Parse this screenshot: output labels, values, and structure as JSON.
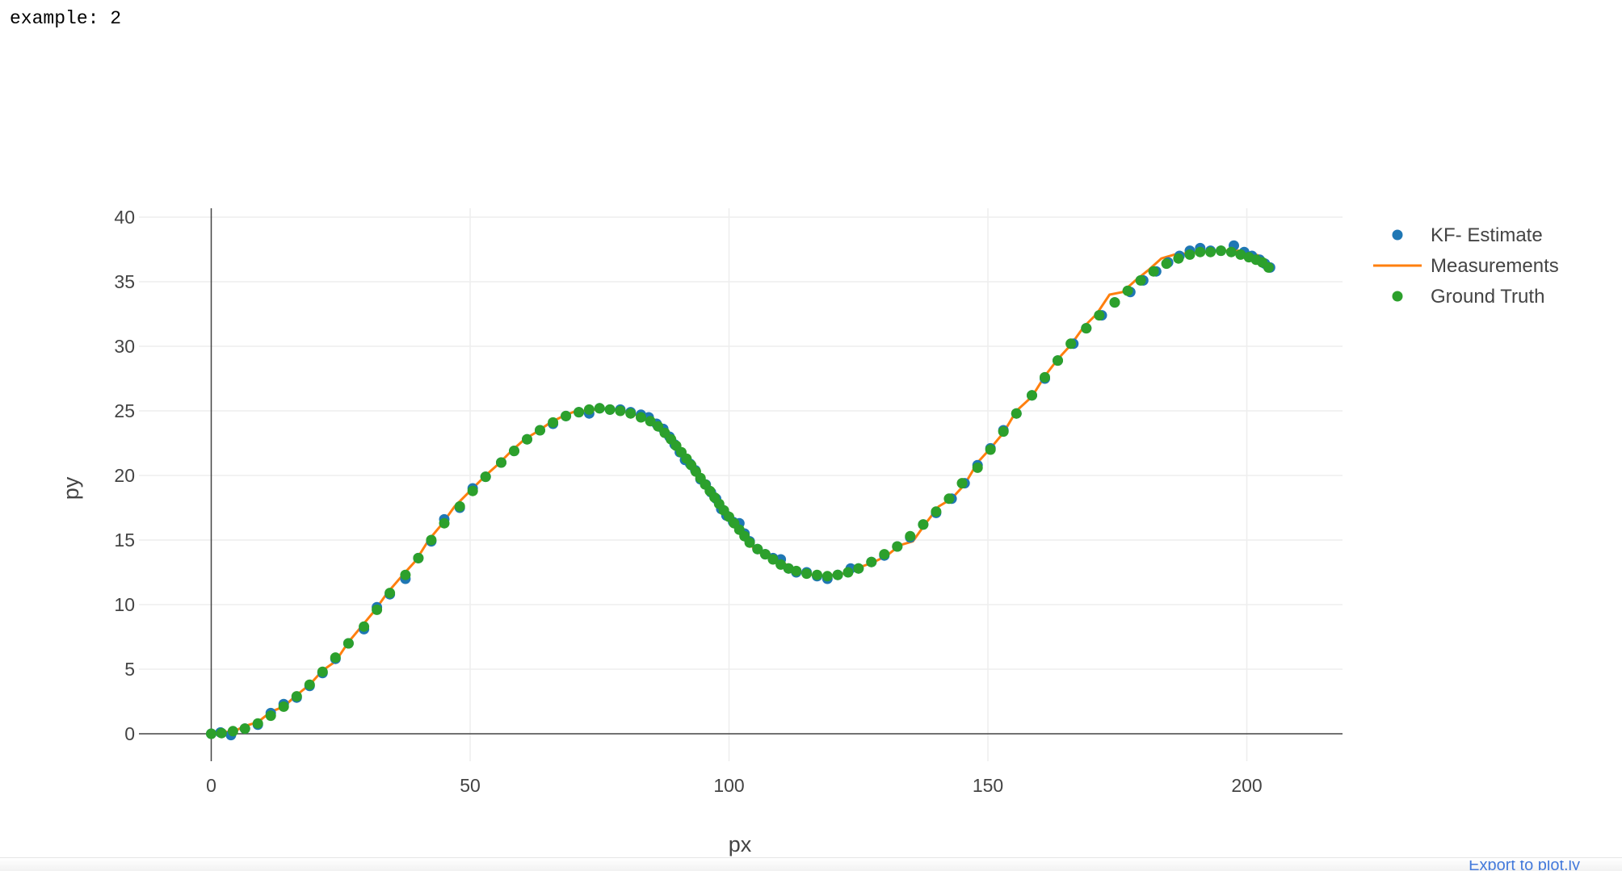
{
  "cell_output": "example: 2",
  "plotly_link": "Export to plot.ly",
  "colors": {
    "kf_estimate": "#1f77b4",
    "measurements": "#ff7f0e",
    "ground_truth": "#2ca02c",
    "grid": "#eeeeee",
    "axis_text": "#444444"
  },
  "chart_data": {
    "type": "scatter",
    "xlabel": "px",
    "ylabel": "py",
    "xlim": [
      -15,
      218
    ],
    "ylim": [
      -2.5,
      40.5
    ],
    "x_ticks": [
      0,
      50,
      100,
      150,
      200
    ],
    "y_ticks": [
      0,
      5,
      10,
      15,
      20,
      25,
      30,
      35,
      40
    ],
    "grid": true,
    "zero_lines": true,
    "legend_position": "top-right",
    "legend": [
      "KF- Estimate",
      "Measurements",
      "Ground Truth"
    ],
    "series": [
      {
        "name": "KF- Estimate",
        "mode": "markers",
        "color": "#1f77b4",
        "points": [
          [
            0,
            0
          ],
          [
            1.8,
            0.1
          ],
          [
            3.8,
            -0.1
          ],
          [
            6.5,
            0.4
          ],
          [
            9,
            0.7
          ],
          [
            11.5,
            1.6
          ],
          [
            14,
            2.3
          ],
          [
            16.5,
            2.8
          ],
          [
            19,
            3.7
          ],
          [
            21.5,
            4.7
          ],
          [
            24,
            5.8
          ],
          [
            26.5,
            7
          ],
          [
            29.5,
            8.1
          ],
          [
            32,
            9.8
          ],
          [
            34.5,
            10.8
          ],
          [
            37.5,
            12
          ],
          [
            40,
            13.6
          ],
          [
            42.5,
            14.9
          ],
          [
            45,
            16.6
          ],
          [
            48,
            17.5
          ],
          [
            50.5,
            19
          ],
          [
            53,
            19.9
          ],
          [
            56,
            21
          ],
          [
            58.5,
            21.9
          ],
          [
            61,
            22.8
          ],
          [
            63.5,
            23.5
          ],
          [
            66,
            24
          ],
          [
            68.5,
            24.6
          ],
          [
            71,
            24.9
          ],
          [
            73,
            24.8
          ],
          [
            75,
            25.2
          ],
          [
            77,
            25.1
          ],
          [
            79,
            25.1
          ],
          [
            81,
            24.9
          ],
          [
            83,
            24.7
          ],
          [
            84.5,
            24.5
          ],
          [
            86,
            24
          ],
          [
            87.3,
            23.6
          ],
          [
            88.5,
            23
          ],
          [
            89.5,
            22.4
          ],
          [
            90.5,
            21.8
          ],
          [
            91.5,
            21.2
          ],
          [
            92.5,
            20.9
          ],
          [
            93.5,
            20.4
          ],
          [
            94.5,
            19.7
          ],
          [
            95.5,
            19.3
          ],
          [
            96.5,
            18.7
          ],
          [
            97.5,
            18.2
          ],
          [
            98.5,
            17.4
          ],
          [
            99.5,
            16.9
          ],
          [
            100.8,
            16.4
          ],
          [
            102,
            16.3
          ],
          [
            103,
            15.5
          ],
          [
            104,
            14.9
          ],
          [
            105.5,
            14.3
          ],
          [
            107,
            13.9
          ],
          [
            108.5,
            13.6
          ],
          [
            110,
            13.5
          ],
          [
            111.5,
            12.8
          ],
          [
            113,
            12.5
          ],
          [
            115,
            12.5
          ],
          [
            117,
            12.2
          ],
          [
            119,
            12
          ],
          [
            121,
            12.3
          ],
          [
            123.5,
            12.8
          ],
          [
            125,
            12.8
          ],
          [
            127.5,
            13.3
          ],
          [
            130,
            13.8
          ],
          [
            132.5,
            14.5
          ],
          [
            135,
            15.2
          ],
          [
            137.5,
            16.2
          ],
          [
            140,
            17.1
          ],
          [
            143,
            18.2
          ],
          [
            145.5,
            19.4
          ],
          [
            148,
            20.8
          ],
          [
            150.5,
            22.1
          ],
          [
            153,
            23.5
          ],
          [
            155.5,
            24.8
          ],
          [
            158.5,
            26.2
          ],
          [
            161,
            27.5
          ],
          [
            163.5,
            28.9
          ],
          [
            166.5,
            30.2
          ],
          [
            169,
            31.4
          ],
          [
            172,
            32.4
          ],
          [
            174.5,
            33.4
          ],
          [
            177.5,
            34.2
          ],
          [
            180,
            35.1
          ],
          [
            182.5,
            35.8
          ],
          [
            184.8,
            36.5
          ],
          [
            187,
            37
          ],
          [
            189,
            37.4
          ],
          [
            191,
            37.6
          ],
          [
            193,
            37.4
          ],
          [
            195,
            37.4
          ],
          [
            197.5,
            37.8
          ],
          [
            199.5,
            37.3
          ],
          [
            201,
            37
          ],
          [
            202.5,
            36.7
          ],
          [
            203.5,
            36.4
          ],
          [
            204.5,
            36.1
          ]
        ]
      },
      {
        "name": "Measurements",
        "mode": "lines",
        "color": "#ff7f0e",
        "points": [
          [
            0,
            0
          ],
          [
            2,
            0.2
          ],
          [
            4,
            0.1
          ],
          [
            6.5,
            0.6
          ],
          [
            9,
            0.9
          ],
          [
            11.5,
            1.7
          ],
          [
            14,
            2.1
          ],
          [
            16.5,
            3
          ],
          [
            19,
            3.8
          ],
          [
            21.5,
            4.9
          ],
          [
            24,
            5.6
          ],
          [
            26.5,
            7.1
          ],
          [
            29,
            8.3
          ],
          [
            31.5,
            9.5
          ],
          [
            34,
            10.9
          ],
          [
            37,
            12.3
          ],
          [
            39.5,
            13.4
          ],
          [
            42,
            15
          ],
          [
            44.5,
            16.2
          ],
          [
            47,
            17.6
          ],
          [
            50,
            18.8
          ],
          [
            53,
            20
          ],
          [
            55.5,
            20.9
          ],
          [
            58,
            21.9
          ],
          [
            60.5,
            22.8
          ],
          [
            63,
            23.4
          ],
          [
            65.5,
            24.1
          ],
          [
            68,
            24.6
          ],
          [
            70.5,
            25
          ],
          [
            73,
            25
          ],
          [
            75,
            25.2
          ],
          [
            77,
            25.1
          ],
          [
            79,
            25.1
          ],
          [
            81,
            24.8
          ],
          [
            83,
            24.6
          ],
          [
            85,
            24.2
          ],
          [
            87,
            23.6
          ],
          [
            88.5,
            22.9
          ],
          [
            90,
            22.3
          ],
          [
            91.5,
            21.5
          ],
          [
            93,
            20.7
          ],
          [
            94.5,
            19.9
          ],
          [
            96,
            19
          ],
          [
            97.5,
            18.1
          ],
          [
            99,
            17.2
          ],
          [
            100.5,
            16.6
          ],
          [
            102,
            15.9
          ],
          [
            103.5,
            15.1
          ],
          [
            105,
            14.2
          ],
          [
            106.5,
            13.9
          ],
          [
            108,
            13.6
          ],
          [
            109.5,
            13.4
          ],
          [
            111,
            13.1
          ],
          [
            112.5,
            12.7
          ],
          [
            114,
            12.5
          ],
          [
            116,
            12.3
          ],
          [
            118,
            12.2
          ],
          [
            120,
            12.3
          ],
          [
            122,
            12.4
          ],
          [
            124,
            12.6
          ],
          [
            126,
            13
          ],
          [
            128,
            13.3
          ],
          [
            130.5,
            13.8
          ],
          [
            133,
            14.6
          ],
          [
            135.5,
            14.9
          ],
          [
            138,
            16.3
          ],
          [
            140.5,
            17.6
          ],
          [
            143,
            18.2
          ],
          [
            145.5,
            19.3
          ],
          [
            148,
            21
          ],
          [
            150.5,
            22.1
          ],
          [
            153,
            23.3
          ],
          [
            155.5,
            25
          ],
          [
            158.5,
            26.1
          ],
          [
            161,
            27.7
          ],
          [
            163.5,
            29
          ],
          [
            166,
            30.1
          ],
          [
            168.5,
            31.5
          ],
          [
            171,
            32.5
          ],
          [
            173.5,
            34
          ],
          [
            176,
            34.2
          ],
          [
            178.5,
            35.1
          ],
          [
            181,
            35.9
          ],
          [
            183.5,
            36.8
          ],
          [
            186,
            37.1
          ],
          [
            188.5,
            37.2
          ],
          [
            191,
            37.3
          ],
          [
            193.5,
            37.4
          ],
          [
            196,
            37.4
          ],
          [
            198.5,
            37.4
          ],
          [
            201,
            37.2
          ],
          [
            202.5,
            37
          ],
          [
            203.3,
            36.4
          ],
          [
            204.5,
            36.1
          ]
        ]
      },
      {
        "name": "Ground Truth",
        "mode": "markers",
        "color": "#2ca02c",
        "points": [
          [
            0,
            0
          ],
          [
            2,
            0.05
          ],
          [
            4.2,
            0.2
          ],
          [
            6.5,
            0.4
          ],
          [
            9,
            0.8
          ],
          [
            11.5,
            1.4
          ],
          [
            14,
            2.1
          ],
          [
            16.5,
            2.9
          ],
          [
            19,
            3.8
          ],
          [
            21.5,
            4.8
          ],
          [
            24,
            5.9
          ],
          [
            26.5,
            7
          ],
          [
            29.5,
            8.3
          ],
          [
            32,
            9.6
          ],
          [
            34.5,
            10.9
          ],
          [
            37.5,
            12.3
          ],
          [
            40,
            13.6
          ],
          [
            42.5,
            15
          ],
          [
            45,
            16.3
          ],
          [
            48,
            17.6
          ],
          [
            50.5,
            18.8
          ],
          [
            53,
            19.9
          ],
          [
            56,
            21
          ],
          [
            58.5,
            21.9
          ],
          [
            61,
            22.8
          ],
          [
            63.5,
            23.5
          ],
          [
            66,
            24.1
          ],
          [
            68.5,
            24.6
          ],
          [
            71,
            24.9
          ],
          [
            73,
            25.1
          ],
          [
            75,
            25.2
          ],
          [
            77,
            25.1
          ],
          [
            79,
            25
          ],
          [
            81,
            24.8
          ],
          [
            83,
            24.5
          ],
          [
            84.8,
            24.2
          ],
          [
            86.3,
            23.8
          ],
          [
            87.6,
            23.3
          ],
          [
            88.8,
            22.8
          ],
          [
            89.8,
            22.3
          ],
          [
            90.8,
            21.8
          ],
          [
            91.8,
            21.3
          ],
          [
            92.7,
            20.8
          ],
          [
            93.6,
            20.3
          ],
          [
            94.5,
            19.8
          ],
          [
            95.4,
            19.3
          ],
          [
            96.3,
            18.8
          ],
          [
            97.2,
            18.3
          ],
          [
            98.1,
            17.8
          ],
          [
            99,
            17.3
          ],
          [
            100,
            16.8
          ],
          [
            101,
            16.3
          ],
          [
            102,
            15.8
          ],
          [
            103,
            15.3
          ],
          [
            104,
            14.8
          ],
          [
            105.5,
            14.3
          ],
          [
            107,
            13.9
          ],
          [
            108.5,
            13.5
          ],
          [
            110,
            13.1
          ],
          [
            111.5,
            12.8
          ],
          [
            113,
            12.6
          ],
          [
            115,
            12.4
          ],
          [
            117,
            12.3
          ],
          [
            119,
            12.2
          ],
          [
            121,
            12.3
          ],
          [
            123,
            12.5
          ],
          [
            125,
            12.8
          ],
          [
            127.5,
            13.3
          ],
          [
            130,
            13.9
          ],
          [
            132.5,
            14.5
          ],
          [
            135,
            15.3
          ],
          [
            137.5,
            16.2
          ],
          [
            140,
            17.2
          ],
          [
            142.5,
            18.2
          ],
          [
            145,
            19.4
          ],
          [
            148,
            20.6
          ],
          [
            150.5,
            22
          ],
          [
            153,
            23.4
          ],
          [
            155.5,
            24.8
          ],
          [
            158.5,
            26.2
          ],
          [
            161,
            27.6
          ],
          [
            163.5,
            28.9
          ],
          [
            166,
            30.2
          ],
          [
            169,
            31.4
          ],
          [
            171.5,
            32.4
          ],
          [
            174.5,
            33.4
          ],
          [
            177,
            34.3
          ],
          [
            179.5,
            35.1
          ],
          [
            182,
            35.8
          ],
          [
            184.5,
            36.4
          ],
          [
            186.8,
            36.8
          ],
          [
            189,
            37.1
          ],
          [
            191,
            37.3
          ],
          [
            193,
            37.3
          ],
          [
            195,
            37.4
          ],
          [
            197,
            37.3
          ],
          [
            198.8,
            37.1
          ],
          [
            200.4,
            36.9
          ],
          [
            201.8,
            36.7
          ],
          [
            203,
            36.5
          ],
          [
            204.2,
            36.1
          ]
        ]
      }
    ]
  }
}
